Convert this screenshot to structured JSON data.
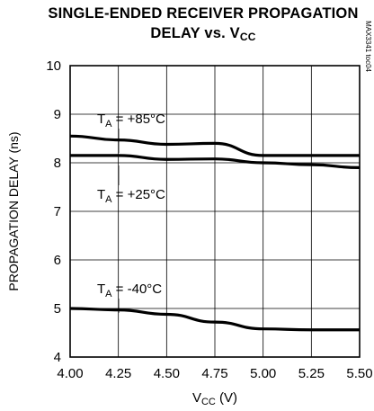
{
  "chart_data": {
    "type": "line",
    "title_line1": "SINGLE-ENDED RECEIVER PROPAGATION",
    "title_line2_main": "DELAY vs. V",
    "title_line2_sub": "CC",
    "xlabel_main": "V",
    "xlabel_sub": "CC",
    "xlabel_unit": " (V)",
    "ylabel": "PROPAGATION DELAY (ns)",
    "figure_code": "MAX3341 toc04",
    "xlim": [
      4.0,
      5.5
    ],
    "ylim": [
      4,
      10
    ],
    "x_ticks": [
      "4.00",
      "4.25",
      "4.50",
      "4.75",
      "5.00",
      "5.25",
      "5.50"
    ],
    "y_ticks": [
      "4",
      "5",
      "6",
      "7",
      "8",
      "9",
      "10"
    ],
    "grid": true,
    "series": [
      {
        "label_main": "T",
        "label_sub": "A",
        "label_rest": " = +85°C",
        "x": [
          4.0,
          4.25,
          4.5,
          4.75,
          5.0,
          5.25,
          5.5
        ],
        "y": [
          8.55,
          8.47,
          8.38,
          8.4,
          8.15,
          8.15,
          8.15
        ]
      },
      {
        "label_main": "T",
        "label_sub": "A",
        "label_rest": " = +25°C",
        "x": [
          4.0,
          4.25,
          4.5,
          4.75,
          5.0,
          5.25,
          5.5
        ],
        "y": [
          8.15,
          8.15,
          8.07,
          8.08,
          8.0,
          7.96,
          7.9
        ]
      },
      {
        "label_main": "T",
        "label_sub": "A",
        "label_rest": " = -40°C",
        "x": [
          4.0,
          4.25,
          4.5,
          4.75,
          5.0,
          5.25,
          5.5
        ],
        "y": [
          5.0,
          4.97,
          4.88,
          4.72,
          4.58,
          4.56,
          4.56
        ]
      }
    ]
  }
}
